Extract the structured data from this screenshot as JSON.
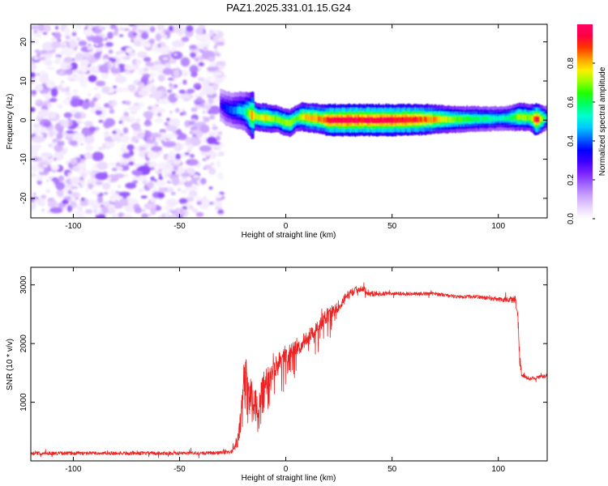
{
  "title": "PAZ1.2025.331.01.15.G24",
  "chart_data": [
    {
      "type": "heatmap",
      "xlabel": "Height of straight line (km)",
      "ylabel": "Frequency (Hz)",
      "xlim": [
        -120,
        123
      ],
      "ylim": [
        -25,
        24.5
      ],
      "xticks": [
        -100,
        -50,
        0,
        50,
        100
      ],
      "yticks": [
        -20,
        -10,
        0,
        10,
        20
      ],
      "colorbar": {
        "label": "Normalized spectral amplitude",
        "range": [
          0,
          1
        ],
        "ticks": [
          0.0,
          0.2,
          0.4,
          0.6,
          0.8
        ],
        "colors": [
          "#ffffff",
          "#e8d5ff",
          "#c9a2ff",
          "#a066ff",
          "#7a22ff",
          "#3c00ff",
          "#0000ff",
          "#0066ff",
          "#00ccff",
          "#00ffcc",
          "#00ff66",
          "#22ff00",
          "#99ff00",
          "#ffee00",
          "#ff9900",
          "#ff3300",
          "#ff0044",
          "#ff0066"
        ]
      },
      "noise_region": {
        "x": [
          -120,
          -30
        ],
        "y": [
          -25,
          24.5
        ],
        "amplitude": [
          0.05,
          0.2
        ]
      },
      "signal_ridge": {
        "x": [
          -31,
          -28,
          -25,
          -22,
          -19,
          -16,
          -13,
          -10,
          -7,
          -4,
          -1,
          2,
          5,
          8,
          11,
          14,
          17,
          20,
          30,
          40,
          50,
          60,
          70,
          80,
          90,
          100,
          105,
          110,
          115,
          118,
          123
        ],
        "frequency": [
          4,
          3,
          2.5,
          2.5,
          2.2,
          1.2,
          0.8,
          0.6,
          0.4,
          0.3,
          -0.4,
          -0.8,
          0.5,
          0.9,
          0.6,
          0.5,
          0.2,
          0.0,
          0.0,
          0.0,
          0.0,
          0.1,
          0.2,
          0.2,
          0.3,
          0.4,
          0.5,
          0.9,
          0.6,
          0.1,
          0.5
        ],
        "amplitude": [
          0.3,
          0.38,
          0.42,
          0.48,
          0.55,
          0.82,
          0.72,
          0.8,
          0.74,
          0.68,
          0.72,
          0.74,
          0.66,
          0.78,
          0.82,
          0.84,
          0.86,
          0.96,
          0.98,
          0.98,
          0.96,
          0.95,
          0.82,
          0.68,
          0.6,
          0.54,
          0.58,
          0.74,
          0.7,
          0.98,
          0.5
        ]
      }
    },
    {
      "type": "line",
      "xlabel": "Height of straight line (km)",
      "ylabel": "SNR (10 * v/v)",
      "xlim": [
        -120,
        123
      ],
      "ylim": [
        0,
        3300
      ],
      "xticks": [
        -100,
        -50,
        0,
        50,
        100
      ],
      "yticks": [
        1000,
        2000,
        3000
      ],
      "series_color": "#ee2222",
      "series": [
        {
          "x": [
            -120,
            -100,
            -80,
            -60,
            -40,
            -30,
            -25,
            -23,
            -22,
            -21,
            -20,
            -19,
            -18,
            -15,
            -13,
            -10,
            -5,
            0,
            5,
            10,
            15,
            20,
            25,
            30,
            35,
            40,
            50,
            60,
            70,
            80,
            90,
            100,
            105,
            108,
            109,
            110,
            111,
            115,
            123
          ],
          "y": [
            130,
            130,
            130,
            130,
            130,
            140,
            170,
            300,
            500,
            800,
            1300,
            1600,
            1300,
            1000,
            900,
            1350,
            1600,
            1800,
            1900,
            2100,
            2300,
            2500,
            2650,
            2850,
            2950,
            2850,
            2850,
            2850,
            2850,
            2800,
            2800,
            2750,
            2750,
            2750,
            2600,
            1800,
            1450,
            1400,
            1450
          ],
          "spread": [
            60,
            60,
            60,
            60,
            60,
            60,
            80,
            200,
            300,
            400,
            500,
            500,
            500,
            500,
            500,
            450,
            400,
            300,
            300,
            250,
            250,
            250,
            200,
            150,
            120,
            100,
            60,
            60,
            60,
            60,
            60,
            80,
            100,
            150,
            250,
            300,
            80,
            60,
            60
          ]
        }
      ]
    }
  ]
}
